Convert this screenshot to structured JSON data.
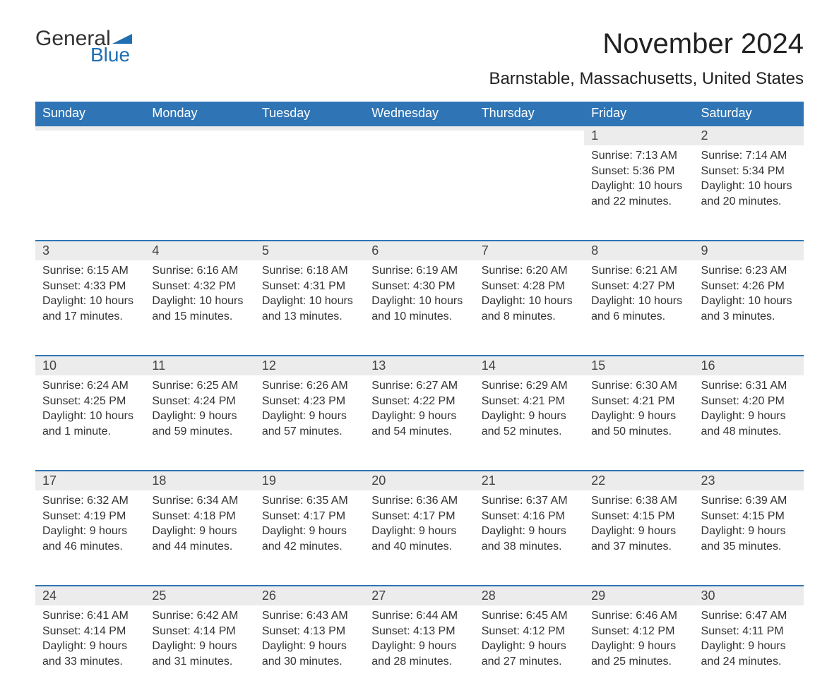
{
  "brand": {
    "word1": "General",
    "word2": "Blue",
    "color_text": "#333333",
    "color_blue": "#1f6fb2"
  },
  "title": "November 2024",
  "subtitle": "Barnstable, Massachusetts, United States",
  "header_bg": "#2f75b5",
  "header_fg": "#ffffff",
  "daynum_bg": "#ececec",
  "daynum_border": "#2f75b5",
  "page_bg": "#ffffff",
  "text_color": "#333333",
  "title_fontsize": 40,
  "subtitle_fontsize": 24,
  "header_fontsize": 18,
  "body_fontsize": 16,
  "weekdays": [
    "Sunday",
    "Monday",
    "Tuesday",
    "Wednesday",
    "Thursday",
    "Friday",
    "Saturday"
  ],
  "weeks": [
    [
      null,
      null,
      null,
      null,
      null,
      {
        "n": "1",
        "sunrise": "Sunrise: 7:13 AM",
        "sunset": "Sunset: 5:36 PM",
        "daylight1": "Daylight: 10 hours",
        "daylight2": "and 22 minutes."
      },
      {
        "n": "2",
        "sunrise": "Sunrise: 7:14 AM",
        "sunset": "Sunset: 5:34 PM",
        "daylight1": "Daylight: 10 hours",
        "daylight2": "and 20 minutes."
      }
    ],
    [
      {
        "n": "3",
        "sunrise": "Sunrise: 6:15 AM",
        "sunset": "Sunset: 4:33 PM",
        "daylight1": "Daylight: 10 hours",
        "daylight2": "and 17 minutes."
      },
      {
        "n": "4",
        "sunrise": "Sunrise: 6:16 AM",
        "sunset": "Sunset: 4:32 PM",
        "daylight1": "Daylight: 10 hours",
        "daylight2": "and 15 minutes."
      },
      {
        "n": "5",
        "sunrise": "Sunrise: 6:18 AM",
        "sunset": "Sunset: 4:31 PM",
        "daylight1": "Daylight: 10 hours",
        "daylight2": "and 13 minutes."
      },
      {
        "n": "6",
        "sunrise": "Sunrise: 6:19 AM",
        "sunset": "Sunset: 4:30 PM",
        "daylight1": "Daylight: 10 hours",
        "daylight2": "and 10 minutes."
      },
      {
        "n": "7",
        "sunrise": "Sunrise: 6:20 AM",
        "sunset": "Sunset: 4:28 PM",
        "daylight1": "Daylight: 10 hours",
        "daylight2": "and 8 minutes."
      },
      {
        "n": "8",
        "sunrise": "Sunrise: 6:21 AM",
        "sunset": "Sunset: 4:27 PM",
        "daylight1": "Daylight: 10 hours",
        "daylight2": "and 6 minutes."
      },
      {
        "n": "9",
        "sunrise": "Sunrise: 6:23 AM",
        "sunset": "Sunset: 4:26 PM",
        "daylight1": "Daylight: 10 hours",
        "daylight2": "and 3 minutes."
      }
    ],
    [
      {
        "n": "10",
        "sunrise": "Sunrise: 6:24 AM",
        "sunset": "Sunset: 4:25 PM",
        "daylight1": "Daylight: 10 hours",
        "daylight2": "and 1 minute."
      },
      {
        "n": "11",
        "sunrise": "Sunrise: 6:25 AM",
        "sunset": "Sunset: 4:24 PM",
        "daylight1": "Daylight: 9 hours",
        "daylight2": "and 59 minutes."
      },
      {
        "n": "12",
        "sunrise": "Sunrise: 6:26 AM",
        "sunset": "Sunset: 4:23 PM",
        "daylight1": "Daylight: 9 hours",
        "daylight2": "and 57 minutes."
      },
      {
        "n": "13",
        "sunrise": "Sunrise: 6:27 AM",
        "sunset": "Sunset: 4:22 PM",
        "daylight1": "Daylight: 9 hours",
        "daylight2": "and 54 minutes."
      },
      {
        "n": "14",
        "sunrise": "Sunrise: 6:29 AM",
        "sunset": "Sunset: 4:21 PM",
        "daylight1": "Daylight: 9 hours",
        "daylight2": "and 52 minutes."
      },
      {
        "n": "15",
        "sunrise": "Sunrise: 6:30 AM",
        "sunset": "Sunset: 4:21 PM",
        "daylight1": "Daylight: 9 hours",
        "daylight2": "and 50 minutes."
      },
      {
        "n": "16",
        "sunrise": "Sunrise: 6:31 AM",
        "sunset": "Sunset: 4:20 PM",
        "daylight1": "Daylight: 9 hours",
        "daylight2": "and 48 minutes."
      }
    ],
    [
      {
        "n": "17",
        "sunrise": "Sunrise: 6:32 AM",
        "sunset": "Sunset: 4:19 PM",
        "daylight1": "Daylight: 9 hours",
        "daylight2": "and 46 minutes."
      },
      {
        "n": "18",
        "sunrise": "Sunrise: 6:34 AM",
        "sunset": "Sunset: 4:18 PM",
        "daylight1": "Daylight: 9 hours",
        "daylight2": "and 44 minutes."
      },
      {
        "n": "19",
        "sunrise": "Sunrise: 6:35 AM",
        "sunset": "Sunset: 4:17 PM",
        "daylight1": "Daylight: 9 hours",
        "daylight2": "and 42 minutes."
      },
      {
        "n": "20",
        "sunrise": "Sunrise: 6:36 AM",
        "sunset": "Sunset: 4:17 PM",
        "daylight1": "Daylight: 9 hours",
        "daylight2": "and 40 minutes."
      },
      {
        "n": "21",
        "sunrise": "Sunrise: 6:37 AM",
        "sunset": "Sunset: 4:16 PM",
        "daylight1": "Daylight: 9 hours",
        "daylight2": "and 38 minutes."
      },
      {
        "n": "22",
        "sunrise": "Sunrise: 6:38 AM",
        "sunset": "Sunset: 4:15 PM",
        "daylight1": "Daylight: 9 hours",
        "daylight2": "and 37 minutes."
      },
      {
        "n": "23",
        "sunrise": "Sunrise: 6:39 AM",
        "sunset": "Sunset: 4:15 PM",
        "daylight1": "Daylight: 9 hours",
        "daylight2": "and 35 minutes."
      }
    ],
    [
      {
        "n": "24",
        "sunrise": "Sunrise: 6:41 AM",
        "sunset": "Sunset: 4:14 PM",
        "daylight1": "Daylight: 9 hours",
        "daylight2": "and 33 minutes."
      },
      {
        "n": "25",
        "sunrise": "Sunrise: 6:42 AM",
        "sunset": "Sunset: 4:14 PM",
        "daylight1": "Daylight: 9 hours",
        "daylight2": "and 31 minutes."
      },
      {
        "n": "26",
        "sunrise": "Sunrise: 6:43 AM",
        "sunset": "Sunset: 4:13 PM",
        "daylight1": "Daylight: 9 hours",
        "daylight2": "and 30 minutes."
      },
      {
        "n": "27",
        "sunrise": "Sunrise: 6:44 AM",
        "sunset": "Sunset: 4:13 PM",
        "daylight1": "Daylight: 9 hours",
        "daylight2": "and 28 minutes."
      },
      {
        "n": "28",
        "sunrise": "Sunrise: 6:45 AM",
        "sunset": "Sunset: 4:12 PM",
        "daylight1": "Daylight: 9 hours",
        "daylight2": "and 27 minutes."
      },
      {
        "n": "29",
        "sunrise": "Sunrise: 6:46 AM",
        "sunset": "Sunset: 4:12 PM",
        "daylight1": "Daylight: 9 hours",
        "daylight2": "and 25 minutes."
      },
      {
        "n": "30",
        "sunrise": "Sunrise: 6:47 AM",
        "sunset": "Sunset: 4:11 PM",
        "daylight1": "Daylight: 9 hours",
        "daylight2": "and 24 minutes."
      }
    ]
  ]
}
